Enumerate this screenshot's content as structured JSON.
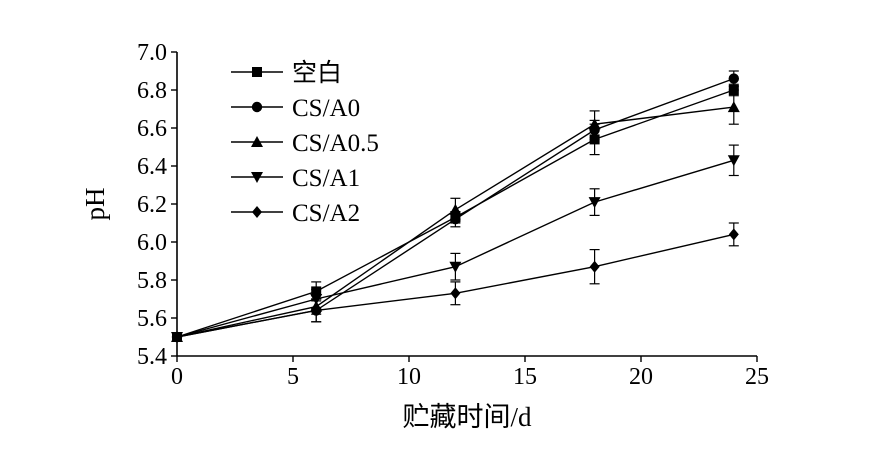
{
  "chart_data": {
    "type": "line",
    "title": "",
    "xlabel": "贮藏时间/d",
    "ylabel": "pH",
    "xlim": [
      0,
      25
    ],
    "ylim": [
      5.4,
      7.0
    ],
    "x_ticks": [
      "0",
      "5",
      "10",
      "15",
      "20",
      "25"
    ],
    "y_ticks": [
      "5.4",
      "5.6",
      "5.8",
      "6.0",
      "6.2",
      "6.4",
      "6.6",
      "6.8",
      "7.0"
    ],
    "grid": false,
    "legend_position": "top-left",
    "x": [
      0,
      6,
      12,
      18,
      24
    ],
    "series": [
      {
        "name": "空白",
        "marker": "square",
        "values": [
          5.5,
          5.74,
          6.13,
          6.54,
          6.8
        ],
        "errors": [
          0.02,
          0.05,
          0.03,
          0.08,
          0.03
        ]
      },
      {
        "name": "CS/A0",
        "marker": "circle",
        "values": [
          5.5,
          5.64,
          6.12,
          6.59,
          6.86
        ],
        "errors": [
          0.02,
          0.06,
          0.04,
          0.05,
          0.04
        ]
      },
      {
        "name": "CS/A0.5",
        "marker": "triangle-up",
        "values": [
          5.5,
          5.66,
          6.17,
          6.62,
          6.71
        ],
        "errors": [
          0.02,
          0.04,
          0.06,
          0.07,
          0.09
        ]
      },
      {
        "name": "CS/A1",
        "marker": "triangle-down",
        "values": [
          5.5,
          5.7,
          5.87,
          6.21,
          6.43
        ],
        "errors": [
          0.02,
          0.05,
          0.07,
          0.07,
          0.08
        ]
      },
      {
        "name": "CS/A2",
        "marker": "diamond",
        "values": [
          5.5,
          5.64,
          5.73,
          5.87,
          6.04
        ],
        "errors": [
          0.02,
          0.06,
          0.06,
          0.09,
          0.06
        ]
      }
    ]
  }
}
